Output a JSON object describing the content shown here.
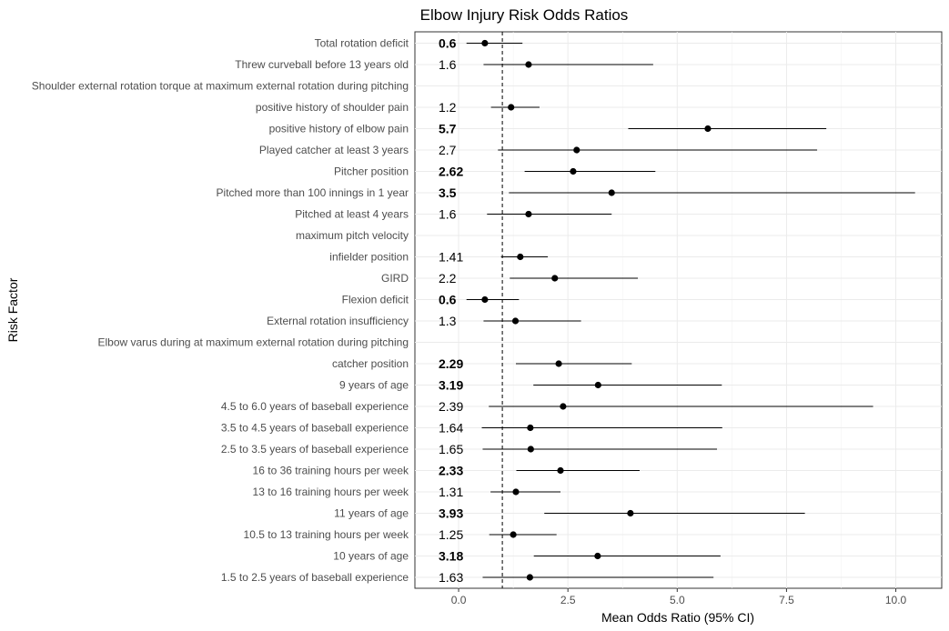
{
  "chart_data": {
    "type": "forest",
    "title": "Elbow Injury Risk Odds Ratios",
    "xlabel": "Mean Odds Ratio (95% CI)",
    "ylabel": "Risk Factor",
    "xlim": [
      -1,
      11.05
    ],
    "xticks": [
      0,
      2.5,
      5,
      7.5,
      10
    ],
    "xtick_labels": [
      "0.0",
      "2.5",
      "5.0",
      "7.5",
      "10.0"
    ],
    "reference_line": 1,
    "grid": true,
    "rows": [
      {
        "label": "Total rotation deficit",
        "value_text": "0.6",
        "bold": true,
        "or": 0.6,
        "lo": 0.18,
        "hi": 1.46
      },
      {
        "label": "Threw curveball before 13 years old",
        "value_text": "1.6",
        "bold": false,
        "or": 1.6,
        "lo": 0.57,
        "hi": 4.45
      },
      {
        "label": "Shoulder external rotation torque at maximum external rotation during pitching",
        "value_text": "",
        "bold": false,
        "or": null,
        "lo": null,
        "hi": null
      },
      {
        "label": "positive history of shoulder pain",
        "value_text": "1.2",
        "bold": false,
        "or": 1.2,
        "lo": 0.74,
        "hi": 1.85
      },
      {
        "label": "positive history of elbow pain",
        "value_text": "5.7",
        "bold": true,
        "or": 5.7,
        "lo": 3.88,
        "hi": 8.41
      },
      {
        "label": "Played catcher at least 3 years",
        "value_text": "2.7",
        "bold": false,
        "or": 2.7,
        "lo": 0.9,
        "hi": 8.2
      },
      {
        "label": "Pitcher position",
        "value_text": "2.62",
        "bold": true,
        "or": 2.62,
        "lo": 1.51,
        "hi": 4.5
      },
      {
        "label": "Pitched more than 100 innings in 1 year",
        "value_text": "3.5",
        "bold": true,
        "or": 3.5,
        "lo": 1.15,
        "hi": 10.44
      },
      {
        "label": "Pitched at least 4 years",
        "value_text": "1.6",
        "bold": false,
        "or": 1.6,
        "lo": 0.65,
        "hi": 3.5
      },
      {
        "label": "maximum pitch velocity",
        "value_text": "",
        "bold": false,
        "or": null,
        "lo": null,
        "hi": null
      },
      {
        "label": "infielder position",
        "value_text": "1.41",
        "bold": false,
        "or": 1.41,
        "lo": 0.97,
        "hi": 2.04
      },
      {
        "label": "GIRD",
        "value_text": "2.2",
        "bold": false,
        "or": 2.2,
        "lo": 1.17,
        "hi": 4.1
      },
      {
        "label": "Flexion deficit",
        "value_text": "0.6",
        "bold": true,
        "or": 0.6,
        "lo": 0.18,
        "hi": 1.38
      },
      {
        "label": "External rotation insufficiency",
        "value_text": "1.3",
        "bold": false,
        "or": 1.3,
        "lo": 0.57,
        "hi": 2.8
      },
      {
        "label": "Elbow varus during at maximum external rotation during pitching",
        "value_text": "",
        "bold": false,
        "or": null,
        "lo": null,
        "hi": null
      },
      {
        "label": "catcher position",
        "value_text": "2.29",
        "bold": true,
        "or": 2.29,
        "lo": 1.31,
        "hi": 3.96
      },
      {
        "label": "9 years of age",
        "value_text": "3.19",
        "bold": true,
        "or": 3.19,
        "lo": 1.71,
        "hi": 6.02
      },
      {
        "label": "4.5 to 6.0 years of baseball experience",
        "value_text": "2.39",
        "bold": false,
        "or": 2.39,
        "lo": 0.69,
        "hi": 9.48
      },
      {
        "label": "3.5 to 4.5 years of baseball experience",
        "value_text": "1.64",
        "bold": false,
        "or": 1.64,
        "lo": 0.53,
        "hi": 6.03
      },
      {
        "label": "2.5 to 3.5 years of baseball experience",
        "value_text": "1.65",
        "bold": false,
        "or": 1.65,
        "lo": 0.55,
        "hi": 5.91
      },
      {
        "label": "16 to 36 training hours per week",
        "value_text": "2.33",
        "bold": true,
        "or": 2.33,
        "lo": 1.32,
        "hi": 4.14
      },
      {
        "label": "13 to 16 training hours per week",
        "value_text": "1.31",
        "bold": false,
        "or": 1.31,
        "lo": 0.73,
        "hi": 2.33
      },
      {
        "label": "11 years of age",
        "value_text": "3.93",
        "bold": true,
        "or": 3.93,
        "lo": 1.96,
        "hi": 7.92
      },
      {
        "label": "10.5 to 13 training hours per week",
        "value_text": "1.25",
        "bold": false,
        "or": 1.25,
        "lo": 0.7,
        "hi": 2.24
      },
      {
        "label": "10 years of age",
        "value_text": "3.18",
        "bold": true,
        "or": 3.18,
        "lo": 1.72,
        "hi": 5.99
      },
      {
        "label": "1.5 to 2.5 years of baseball experience",
        "value_text": "1.63",
        "bold": false,
        "or": 1.63,
        "lo": 0.55,
        "hi": 5.83
      }
    ]
  }
}
